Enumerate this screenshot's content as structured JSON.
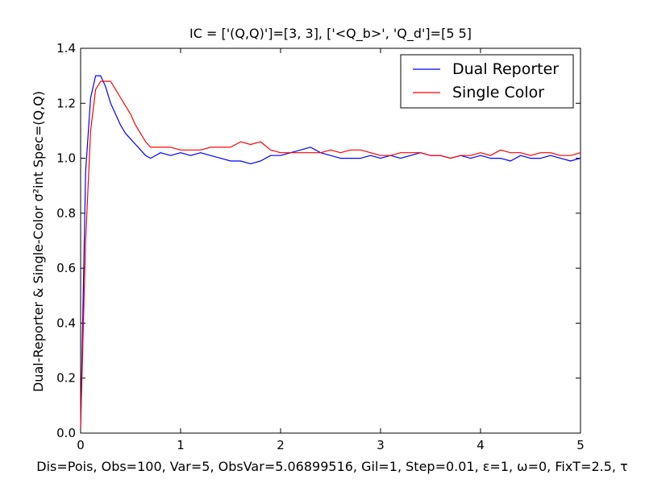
{
  "chart_data": {
    "type": "line",
    "title": "IC = ['(Q,Q)']=[3, 3], ['<Q_b>', 'Q_d']=[5 5]",
    "xlabel": "Dis=Pois, Obs=100, Var=5, ObsVar=5.06899516, Gil=1, Step=0.01, ε=1, ω=0, FixT=2.5, τ",
    "ylabel": "Dual-Reporter & Single-Color σ²int Spec=(Q,Q)",
    "xlim": [
      0,
      5
    ],
    "ylim": [
      0.0,
      1.4
    ],
    "x_ticks": [
      "0",
      "1",
      "2",
      "3",
      "4",
      "5"
    ],
    "y_ticks": [
      "0.0",
      "0.2",
      "0.4",
      "0.6",
      "0.8",
      "1.0",
      "1.2",
      "1.4"
    ],
    "grid": false,
    "legend_position": "top-right",
    "x": [
      0,
      0.05,
      0.1,
      0.15,
      0.2,
      0.25,
      0.3,
      0.35,
      0.4,
      0.45,
      0.5,
      0.55,
      0.6,
      0.65,
      0.7,
      0.8,
      0.9,
      1.0,
      1.1,
      1.2,
      1.3,
      1.4,
      1.5,
      1.6,
      1.7,
      1.8,
      1.9,
      2.0,
      2.1,
      2.2,
      2.3,
      2.4,
      2.5,
      2.6,
      2.7,
      2.8,
      2.9,
      3.0,
      3.1,
      3.2,
      3.3,
      3.4,
      3.5,
      3.6,
      3.7,
      3.8,
      3.9,
      4.0,
      4.1,
      4.2,
      4.3,
      4.4,
      4.5,
      4.6,
      4.7,
      4.8,
      4.9,
      5.0
    ],
    "series": [
      {
        "name": "Dual Reporter",
        "color": "#0000ff",
        "values": [
          0.02,
          0.95,
          1.22,
          1.3,
          1.3,
          1.26,
          1.2,
          1.16,
          1.12,
          1.09,
          1.07,
          1.05,
          1.03,
          1.01,
          1.0,
          1.02,
          1.01,
          1.02,
          1.01,
          1.02,
          1.01,
          1.0,
          0.99,
          0.99,
          0.98,
          0.99,
          1.01,
          1.01,
          1.02,
          1.03,
          1.04,
          1.02,
          1.01,
          1.0,
          1.0,
          1.0,
          1.01,
          1.0,
          1.01,
          1.0,
          1.01,
          1.02,
          1.01,
          1.01,
          1.0,
          1.01,
          1.0,
          1.01,
          1.0,
          1.0,
          0.99,
          1.01,
          1.0,
          1.0,
          1.01,
          1.0,
          0.99,
          1.0
        ]
      },
      {
        "name": "Single Color",
        "color": "#ff0000",
        "values": [
          0.02,
          0.7,
          1.1,
          1.25,
          1.28,
          1.28,
          1.28,
          1.25,
          1.22,
          1.19,
          1.16,
          1.12,
          1.09,
          1.06,
          1.04,
          1.04,
          1.04,
          1.03,
          1.03,
          1.03,
          1.04,
          1.04,
          1.04,
          1.06,
          1.05,
          1.06,
          1.03,
          1.02,
          1.02,
          1.02,
          1.02,
          1.02,
          1.03,
          1.02,
          1.03,
          1.03,
          1.02,
          1.01,
          1.01,
          1.02,
          1.02,
          1.02,
          1.01,
          1.01,
          1.0,
          1.01,
          1.01,
          1.02,
          1.01,
          1.03,
          1.02,
          1.02,
          1.01,
          1.02,
          1.02,
          1.01,
          1.01,
          1.02
        ]
      }
    ]
  }
}
